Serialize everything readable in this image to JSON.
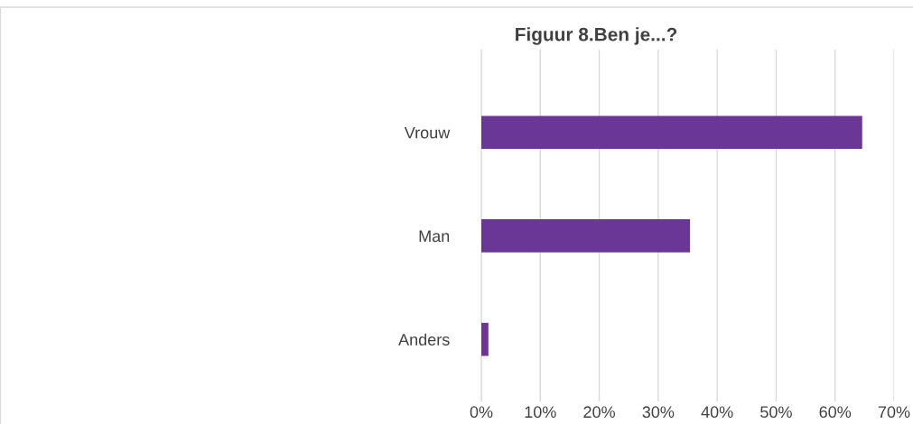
{
  "chart_data": {
    "type": "bar",
    "orientation": "horizontal",
    "title": "Figuur 8.Ben je...?",
    "categories": [
      "Vrouw",
      "Man",
      "Anders"
    ],
    "values": [
      64.6,
      35.4,
      1.2
    ],
    "color": "#6a3796",
    "xlim": [
      0,
      70
    ],
    "xticks": [
      {
        "value": 0,
        "label": "0%"
      },
      {
        "value": 10,
        "label": "10%"
      },
      {
        "value": 20,
        "label": "20%"
      },
      {
        "value": 30,
        "label": "30%"
      },
      {
        "value": 40,
        "label": "40%"
      },
      {
        "value": 50,
        "label": "50%"
      },
      {
        "value": 60,
        "label": "60%"
      },
      {
        "value": 70,
        "label": "70%"
      }
    ],
    "grid": "x"
  }
}
